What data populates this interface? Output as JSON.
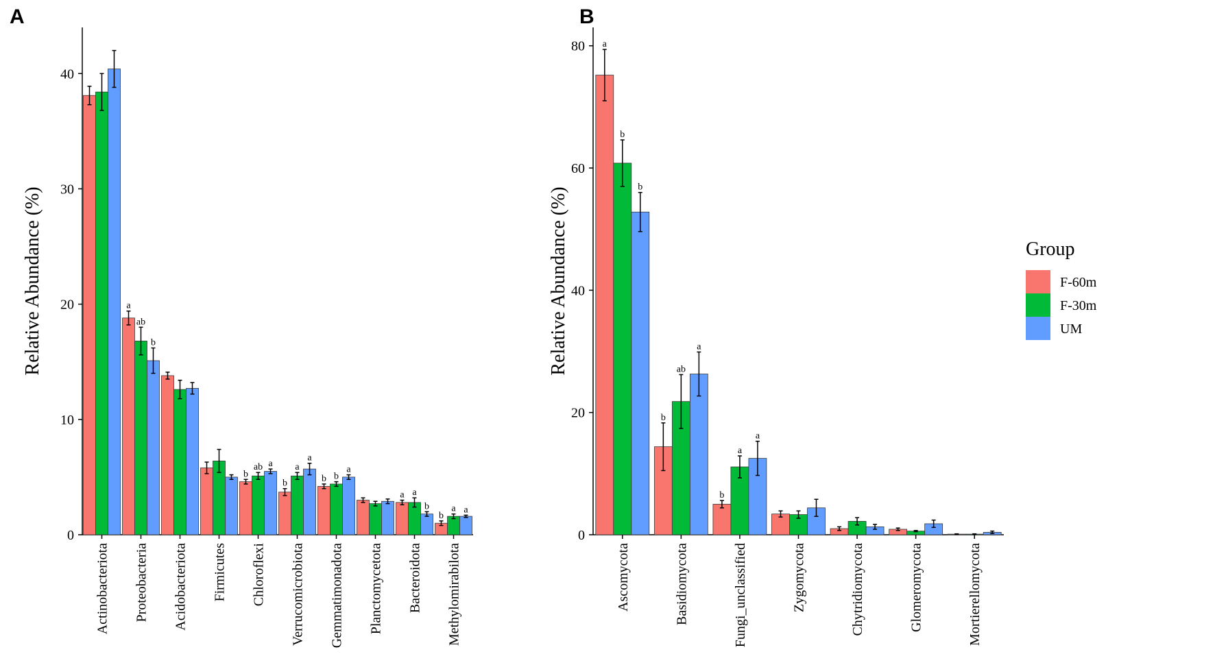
{
  "colors": {
    "F-60m": "#F8766D",
    "F-30m": "#00BA38",
    "UM": "#619CFF"
  },
  "legend": {
    "title": "Group",
    "items": [
      "F-60m",
      "F-30m",
      "UM"
    ]
  },
  "chart_data": [
    {
      "type": "bar",
      "panel": "A",
      "ylabel": "Relative Abundance (%)",
      "ylim": [
        0,
        44
      ],
      "yticks": [
        0,
        10,
        20,
        30,
        40
      ],
      "categories": [
        "Actinobacteriota",
        "Proteobacteria",
        "Acidobacteriota",
        "Firmicutes",
        "Chloroflexi",
        "Verrucomicrobiota",
        "Gemmatimonadota",
        "Planctomycetota",
        "Bacteroidota",
        "Methylomirabilota"
      ],
      "series": [
        {
          "name": "F-60m",
          "values": [
            38.1,
            18.8,
            13.8,
            5.8,
            4.6,
            3.7,
            4.2,
            3.0,
            2.8,
            1.0
          ],
          "errors": [
            0.8,
            0.6,
            0.3,
            0.5,
            0.2,
            0.3,
            0.2,
            0.2,
            0.2,
            0.2
          ],
          "labels": [
            "",
            "a",
            "",
            "",
            "b",
            "b",
            "b",
            "",
            "a",
            "b"
          ]
        },
        {
          "name": "F-30m",
          "values": [
            38.4,
            16.8,
            12.6,
            6.4,
            5.1,
            5.1,
            4.4,
            2.7,
            2.8,
            1.6
          ],
          "errors": [
            1.6,
            1.2,
            0.8,
            1.0,
            0.3,
            0.3,
            0.2,
            0.2,
            0.4,
            0.2
          ],
          "labels": [
            "",
            "ab",
            "",
            "",
            "ab",
            "a",
            "b",
            "",
            "a",
            "a"
          ]
        },
        {
          "name": "UM",
          "values": [
            40.4,
            15.1,
            12.7,
            5.0,
            5.5,
            5.7,
            5.0,
            2.9,
            1.8,
            1.6
          ],
          "errors": [
            1.6,
            1.1,
            0.5,
            0.2,
            0.2,
            0.5,
            0.2,
            0.2,
            0.2,
            0.1
          ],
          "labels": [
            "",
            "b",
            "",
            "",
            "a",
            "a",
            "a",
            "",
            "b",
            "a"
          ]
        }
      ]
    },
    {
      "type": "bar",
      "panel": "B",
      "ylabel": "Relative Abundance (%)",
      "ylim": [
        0,
        83
      ],
      "yticks": [
        0,
        20,
        40,
        60,
        80
      ],
      "categories": [
        "Ascomycota",
        "Basidiomycota",
        "Fungi_unclassified",
        "Zygomycota",
        "Chytridiomycota",
        "Glomeromycota",
        "Mortierellomycota"
      ],
      "series": [
        {
          "name": "F-60m",
          "values": [
            75.2,
            14.4,
            5.0,
            3.4,
            1.0,
            0.9,
            0.1
          ],
          "errors": [
            4.2,
            3.9,
            0.6,
            0.5,
            0.3,
            0.2,
            0.05
          ],
          "labels": [
            "a",
            "b",
            "b",
            "",
            "",
            "",
            ""
          ]
        },
        {
          "name": "F-30m",
          "values": [
            60.8,
            21.8,
            11.1,
            3.3,
            2.2,
            0.6,
            0.1
          ],
          "errors": [
            3.8,
            4.4,
            1.8,
            0.6,
            0.6,
            0.1,
            0.05
          ],
          "labels": [
            "b",
            "ab",
            "a",
            "",
            "",
            "",
            ""
          ]
        },
        {
          "name": "UM",
          "values": [
            52.8,
            26.3,
            12.5,
            4.4,
            1.3,
            1.8,
            0.4
          ],
          "errors": [
            3.2,
            3.6,
            2.8,
            1.4,
            0.4,
            0.6,
            0.2
          ],
          "labels": [
            "b",
            "a",
            "a",
            "",
            "",
            "",
            ""
          ]
        }
      ]
    }
  ]
}
